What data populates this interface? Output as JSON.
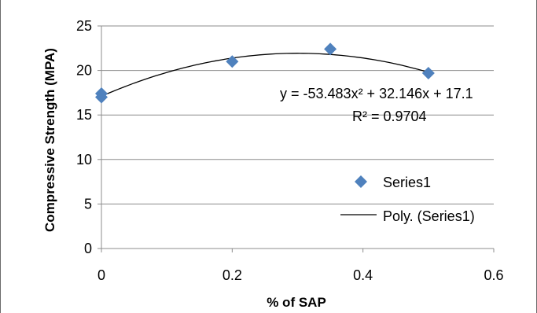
{
  "chart_data": {
    "type": "scatter",
    "title": "",
    "xlabel": "% of SAP",
    "ylabel": "Compressive Strength (MPA)",
    "xlim": [
      0,
      0.6
    ],
    "ylim": [
      0,
      25
    ],
    "x_ticks": [
      "0",
      "0.2",
      "0.4",
      "0.6"
    ],
    "y_ticks": [
      "0",
      "5",
      "10",
      "15",
      "20",
      "25"
    ],
    "grid": "horizontal",
    "legend_placement": "right",
    "series": [
      {
        "name": "Series1",
        "marker": "diamond",
        "color": "#4f81bd",
        "points": [
          {
            "x": 0,
            "y": 17.0
          },
          {
            "x": 0,
            "y": 17.4
          },
          {
            "x": 0.2,
            "y": 21.0
          },
          {
            "x": 0.35,
            "y": 22.4
          },
          {
            "x": 0.5,
            "y": 19.7
          }
        ]
      }
    ],
    "trendline": {
      "name": "Poly. (Series1)",
      "type": "polynomial",
      "coefficients": [
        -53.483,
        32.146,
        17.1
      ],
      "x_range": [
        0,
        0.5
      ],
      "color": "#000000"
    },
    "annotations": {
      "equation": "y = -53.483x² + 32.146x + 17.1",
      "r_squared": "R² = 0.9704"
    }
  }
}
